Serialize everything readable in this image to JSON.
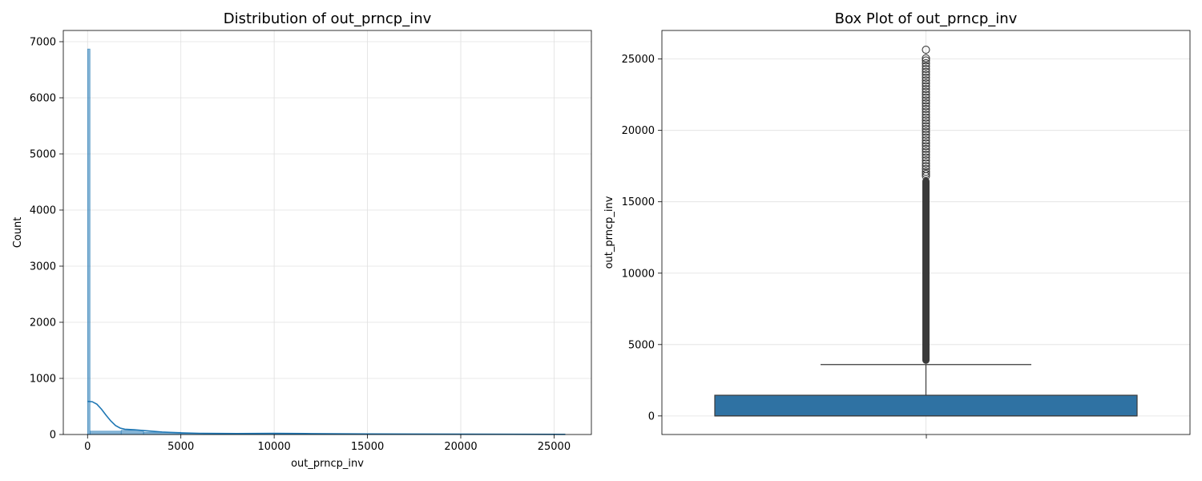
{
  "chart_data": [
    {
      "type": "histogram",
      "title": "Distribution of out_prncp_inv",
      "xlabel": "out_prncp_inv",
      "ylabel": "Count",
      "xlim": [
        -1300,
        27000
      ],
      "ylim": [
        0,
        7200
      ],
      "xticks": [
        "0",
        "5000",
        "10000",
        "15000",
        "20000",
        "25000"
      ],
      "yticks": [
        "0",
        "1000",
        "2000",
        "3000",
        "4000",
        "5000",
        "6000",
        "7000"
      ],
      "grid": true,
      "bar_color": "#1f77b4",
      "kde_color": "#1f77b4",
      "bins": [
        {
          "x0": 0,
          "x1": 130,
          "count": 6870
        },
        {
          "x0": 130,
          "x1": 1800,
          "count": 60
        },
        {
          "x0": 1800,
          "x1": 3000,
          "count": 75
        },
        {
          "x0": 3000,
          "x1": 5000,
          "count": 40
        },
        {
          "x0": 5000,
          "x1": 10000,
          "count": 18
        },
        {
          "x0": 10000,
          "x1": 15000,
          "count": 12
        },
        {
          "x0": 15000,
          "x1": 20000,
          "count": 7
        },
        {
          "x0": 20000,
          "x1": 25600,
          "count": 4
        }
      ],
      "kde": {
        "x": [
          0,
          250,
          500,
          750,
          1000,
          1250,
          1500,
          1750,
          2000,
          2500,
          3000,
          4000,
          5000,
          6000,
          8000,
          10000,
          12000,
          15000,
          20000,
          25600
        ],
        "y": [
          590,
          585,
          540,
          450,
          340,
          240,
          160,
          115,
          95,
          85,
          70,
          45,
          30,
          22,
          17,
          20,
          16,
          10,
          5,
          3
        ]
      }
    },
    {
      "type": "box",
      "title": "Box Plot of out_prncp_inv",
      "xlabel": "",
      "ylabel": "out_prncp_inv",
      "ylim": [
        -1300,
        27000
      ],
      "yticks": [
        "0",
        "5000",
        "10000",
        "15000",
        "20000",
        "25000"
      ],
      "grid": true,
      "box_color": "#2f72a3",
      "stats": {
        "min": 0,
        "q1": 0,
        "median": 0,
        "q3": 1450,
        "whisker_high": 3600,
        "max": 25650
      },
      "outliers_dense_range": [
        3650,
        16700
      ],
      "outliers": [
        16800,
        16950,
        17100,
        17300,
        17500,
        17700,
        17900,
        18100,
        18300,
        18500,
        18700,
        18900,
        19100,
        19300,
        19500,
        19700,
        19900,
        20100,
        20300,
        20500,
        20700,
        20900,
        21100,
        21300,
        21500,
        21700,
        21900,
        22100,
        22300,
        22500,
        22700,
        22900,
        23100,
        23300,
        23500,
        23700,
        23900,
        24100,
        24300,
        24500,
        24700,
        24900,
        25050,
        25650
      ]
    }
  ]
}
